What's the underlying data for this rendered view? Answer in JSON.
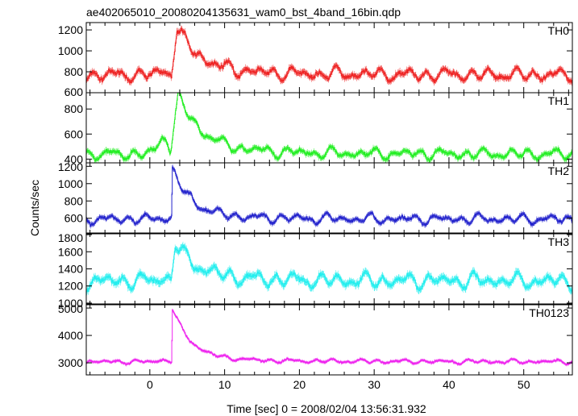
{
  "chart_data": {
    "type": "line",
    "title": "ae402065010_20080204135631_wam0_bst_4band_16bin.qdp",
    "xlabel": "Time [sec] 0 = 2008/02/04 13:56:31.932",
    "ylabel": "Counts/sec",
    "xlim": [
      -8.5,
      56.5
    ],
    "x_ticks": [
      0,
      10,
      20,
      30,
      40,
      50
    ],
    "panels": [
      {
        "name": "TH0",
        "color": "#ee2222",
        "ylim": [
          600,
          1270
        ],
        "y_ticks": [
          600,
          800,
          1000,
          1200
        ],
        "profile": {
          "baseline": 770,
          "wiggle": 50,
          "noise": 30,
          "step_t": 2.9,
          "pre_bump": 40,
          "peak": 1190,
          "peak_t": 3.6,
          "decay_tau": 3.2,
          "late": 30,
          "late_tau": 15,
          "error": 28
        }
      },
      {
        "name": "TH1",
        "color": "#22ee22",
        "ylim": [
          370,
          930
        ],
        "y_ticks": [
          400,
          600,
          800
        ],
        "profile": {
          "baseline": 440,
          "wiggle": 35,
          "noise": 22,
          "step_t": 2.8,
          "pre_bump": 140,
          "peak": 860,
          "peak_t": 3.8,
          "decay_tau": 3.0,
          "late": 60,
          "late_tau": 10,
          "error": 20
        }
      },
      {
        "name": "TH2",
        "color": "#2222cc",
        "ylim": [
          430,
          1240
        ],
        "y_ticks": [
          600,
          800,
          1000,
          1200
        ],
        "profile": {
          "baseline": 590,
          "wiggle": 45,
          "noise": 28,
          "step_t": 2.9,
          "pre_bump": 25,
          "peak": 1140,
          "peak_t": 3.0,
          "decay_tau": 2.6,
          "late": 30,
          "late_tau": 12,
          "error": 25
        }
      },
      {
        "name": "TH3",
        "color": "#22eeee",
        "ylim": [
          990,
          1810
        ],
        "y_ticks": [
          1000,
          1200,
          1400,
          1600,
          1800
        ],
        "profile": {
          "baseline": 1260,
          "wiggle": 70,
          "noise": 40,
          "step_t": 2.9,
          "pre_bump": 40,
          "peak": 1660,
          "peak_t": 3.4,
          "decay_tau": 3.0,
          "late": 40,
          "late_tau": 12,
          "error": 40
        }
      },
      {
        "name": "TH0123",
        "color": "#ee22ee",
        "ylim": [
          2560,
          5120
        ],
        "y_ticks": [
          3000,
          4000,
          5000
        ],
        "profile": {
          "baseline": 3040,
          "wiggle": 60,
          "noise": 50,
          "step_t": 2.9,
          "pre_bump": 60,
          "peak": 4900,
          "peak_t": 3.0,
          "decay_tau": 2.4,
          "late": 120,
          "late_tau": 12,
          "error": 50
        }
      }
    ]
  }
}
